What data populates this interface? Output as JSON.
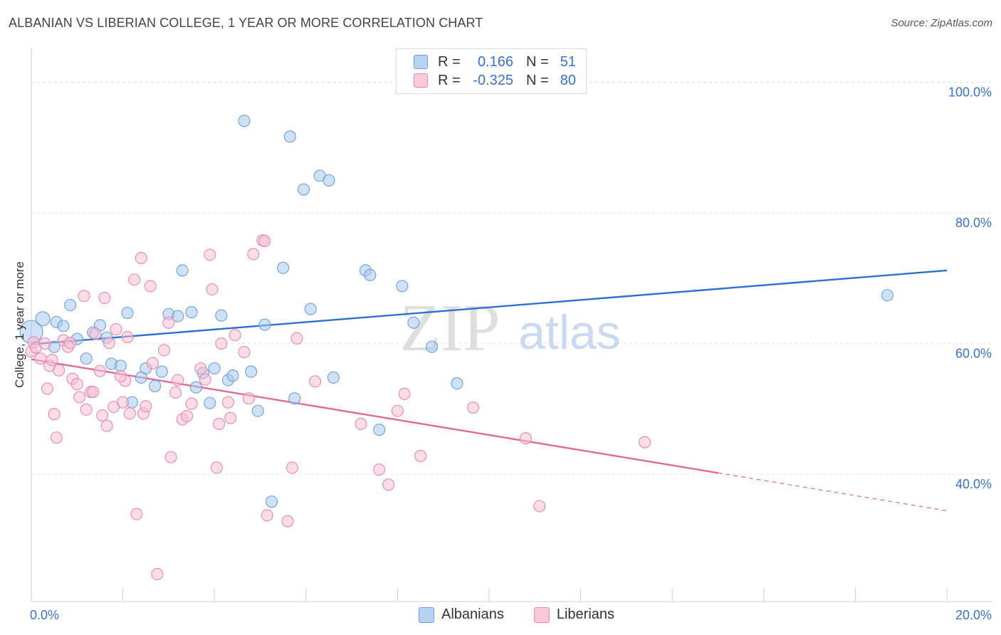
{
  "title": "ALBANIAN VS LIBERIAN COLLEGE, 1 YEAR OR MORE CORRELATION CHART",
  "source": "Source: ZipAtlas.com",
  "watermark": {
    "zip": "ZIP",
    "atlas": "atlas"
  },
  "legend": {
    "albanians": {
      "r_label": "R =",
      "r_value": "0.166",
      "n_label": "N =",
      "n_value": "51",
      "color": "#a8c8f0",
      "border": "#6f9fd8"
    },
    "liberians": {
      "r_label": "R =",
      "r_value": "-0.325",
      "n_label": "N =",
      "n_value": "80",
      "color": "#f8c0d4",
      "border": "#e88aab"
    }
  },
  "bottom_legend": [
    "Albanians",
    "Liberians"
  ],
  "chart_data": {
    "type": "scatter",
    "title": "ALBANIAN VS LIBERIAN COLLEGE, 1 YEAR OR MORE CORRELATION CHART",
    "xlabel": "",
    "ylabel": "College, 1 year or more",
    "xlim": [
      0,
      20
    ],
    "ylim": [
      20.5,
      104
    ],
    "x_tick_labels": [
      "0.0%",
      "20.0%"
    ],
    "y_ticks": [
      40,
      60,
      80,
      100
    ],
    "y_tick_labels": [
      "40.0%",
      "60.0%",
      "80.0%",
      "100.0%"
    ],
    "grid": true,
    "legend_position": "top-center",
    "series": [
      {
        "name": "Albanians",
        "color": "#6f9fd8",
        "fill": "#a8c8f0",
        "trend": {
          "x": [
            0,
            20
          ],
          "y": [
            59.9,
            71.2
          ],
          "color": "#2f6fce"
        },
        "points": [
          [
            0.0,
            61.8
          ],
          [
            0.25,
            63.8
          ],
          [
            0.5,
            59.5
          ],
          [
            0.55,
            63.3
          ],
          [
            0.7,
            62.7
          ],
          [
            0.85,
            65.9
          ],
          [
            1.0,
            60.7
          ],
          [
            1.2,
            57.7
          ],
          [
            1.35,
            61.7
          ],
          [
            1.5,
            62.8
          ],
          [
            1.65,
            60.9
          ],
          [
            1.75,
            56.9
          ],
          [
            1.95,
            56.6
          ],
          [
            2.1,
            64.7
          ],
          [
            2.2,
            51.0
          ],
          [
            2.4,
            54.8
          ],
          [
            2.5,
            56.2
          ],
          [
            2.7,
            53.5
          ],
          [
            2.85,
            55.7
          ],
          [
            3.0,
            64.5
          ],
          [
            3.2,
            64.2
          ],
          [
            3.3,
            71.2
          ],
          [
            3.5,
            64.8
          ],
          [
            3.6,
            53.3
          ],
          [
            3.75,
            55.5
          ],
          [
            3.9,
            50.9
          ],
          [
            4.0,
            56.2
          ],
          [
            4.15,
            64.3
          ],
          [
            4.3,
            54.4
          ],
          [
            4.4,
            55.1
          ],
          [
            4.65,
            94.1
          ],
          [
            4.8,
            55.7
          ],
          [
            4.95,
            49.7
          ],
          [
            5.1,
            62.9
          ],
          [
            5.25,
            35.8
          ],
          [
            5.5,
            71.6
          ],
          [
            5.65,
            91.7
          ],
          [
            5.75,
            51.6
          ],
          [
            5.95,
            83.6
          ],
          [
            6.1,
            65.3
          ],
          [
            6.3,
            85.7
          ],
          [
            6.5,
            85.0
          ],
          [
            6.6,
            54.8
          ],
          [
            7.3,
            71.2
          ],
          [
            7.4,
            70.5
          ],
          [
            7.6,
            46.8
          ],
          [
            8.1,
            68.8
          ],
          [
            8.35,
            63.2
          ],
          [
            8.75,
            59.5
          ],
          [
            9.3,
            53.9
          ],
          [
            18.7,
            67.4
          ]
        ]
      },
      {
        "name": "Liberians",
        "color": "#e88aab",
        "fill": "#f8c0d4",
        "trend": {
          "x": [
            0,
            15
          ],
          "y": [
            57.6,
            40.2
          ],
          "dash_x": [
            15,
            20
          ],
          "dash_y": [
            40.2,
            34.4
          ],
          "color": "#e06a96"
        },
        "points": [
          [
            0.0,
            58.8
          ],
          [
            0.05,
            60.2
          ],
          [
            0.1,
            59.4
          ],
          [
            0.2,
            57.7
          ],
          [
            0.3,
            60.0
          ],
          [
            0.35,
            53.1
          ],
          [
            0.4,
            56.6
          ],
          [
            0.45,
            57.5
          ],
          [
            0.5,
            49.2
          ],
          [
            0.55,
            45.6
          ],
          [
            0.6,
            55.9
          ],
          [
            0.7,
            60.5
          ],
          [
            0.8,
            59.5
          ],
          [
            0.85,
            60.1
          ],
          [
            0.9,
            54.6
          ],
          [
            1.0,
            53.8
          ],
          [
            1.05,
            51.8
          ],
          [
            1.15,
            67.3
          ],
          [
            1.2,
            49.9
          ],
          [
            1.3,
            52.6
          ],
          [
            1.35,
            52.6
          ],
          [
            1.4,
            61.5
          ],
          [
            1.5,
            55.8
          ],
          [
            1.55,
            49.0
          ],
          [
            1.6,
            67.0
          ],
          [
            1.65,
            47.4
          ],
          [
            1.7,
            60.1
          ],
          [
            1.8,
            50.3
          ],
          [
            1.85,
            62.2
          ],
          [
            2.0,
            51.0
          ],
          [
            2.05,
            54.3
          ],
          [
            2.1,
            61.0
          ],
          [
            2.15,
            49.3
          ],
          [
            2.25,
            69.8
          ],
          [
            2.3,
            33.9
          ],
          [
            2.4,
            73.1
          ],
          [
            2.45,
            49.3
          ],
          [
            2.5,
            50.4
          ],
          [
            2.6,
            68.8
          ],
          [
            2.65,
            57.0
          ],
          [
            2.75,
            24.7
          ],
          [
            2.9,
            59.0
          ],
          [
            3.0,
            63.2
          ],
          [
            3.05,
            42.6
          ],
          [
            3.15,
            52.5
          ],
          [
            3.2,
            54.4
          ],
          [
            3.3,
            48.4
          ],
          [
            3.4,
            48.9
          ],
          [
            3.5,
            50.8
          ],
          [
            3.7,
            56.2
          ],
          [
            3.8,
            54.5
          ],
          [
            3.9,
            73.6
          ],
          [
            3.95,
            68.3
          ],
          [
            4.05,
            41.0
          ],
          [
            4.1,
            47.7
          ],
          [
            4.15,
            60.0
          ],
          [
            4.3,
            51.0
          ],
          [
            4.35,
            48.6
          ],
          [
            4.45,
            61.3
          ],
          [
            4.65,
            58.7
          ],
          [
            4.75,
            51.6
          ],
          [
            4.85,
            73.7
          ],
          [
            5.05,
            75.8
          ],
          [
            5.1,
            75.7
          ],
          [
            5.15,
            33.7
          ],
          [
            5.6,
            32.8
          ],
          [
            5.7,
            41.0
          ],
          [
            5.8,
            60.8
          ],
          [
            6.2,
            54.2
          ],
          [
            7.2,
            47.7
          ],
          [
            7.6,
            40.7
          ],
          [
            7.8,
            38.4
          ],
          [
            8.0,
            49.7
          ],
          [
            8.15,
            52.3
          ],
          [
            8.5,
            42.8
          ],
          [
            9.65,
            50.2
          ],
          [
            10.8,
            45.5
          ],
          [
            11.1,
            35.1
          ],
          [
            13.4,
            44.9
          ],
          [
            1.95,
            55.0
          ]
        ]
      }
    ]
  }
}
